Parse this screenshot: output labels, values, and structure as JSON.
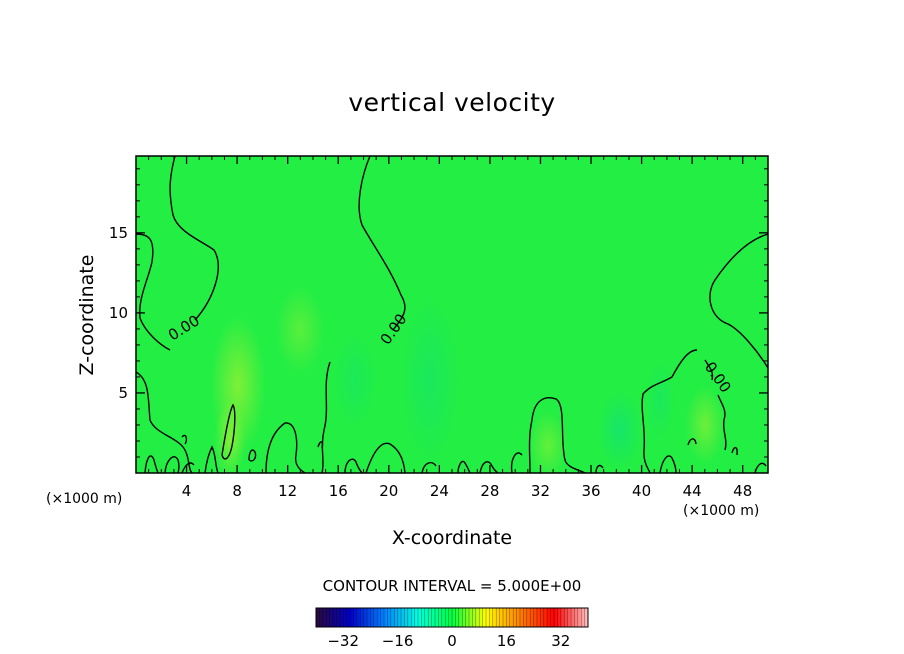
{
  "chart_data": {
    "type": "heatmap",
    "title": "vertical velocity",
    "xlabel": "X-coordinate",
    "ylabel": "Z-coordinate",
    "x_unit_left": "(×1000 m)",
    "x_unit_right": "(×1000 m)",
    "xlim": [
      0,
      50
    ],
    "ylim": [
      0,
      19.8
    ],
    "x_ticks": [
      4,
      8,
      12,
      16,
      20,
      24,
      28,
      32,
      36,
      40,
      44,
      48
    ],
    "y_ticks": [
      5,
      10,
      15
    ],
    "contour_labels": [
      {
        "text": "0.00",
        "x": 4,
        "y": 8.8,
        "angle": -32
      },
      {
        "text": "0.00",
        "x": 20.7,
        "y": 8.8,
        "angle": -55
      },
      {
        "text": "0.00",
        "x": 45.7,
        "y": 5.8,
        "angle": 55
      }
    ],
    "contour_interval_text": "CONTOUR INTERVAL = 5.000E+00",
    "colorbar": {
      "min": -40,
      "max": 40,
      "ticks": [
        -32,
        -16,
        0,
        16,
        32
      ],
      "colors": [
        "#2a0a3a",
        "#0000c8",
        "#0080ff",
        "#00ffe0",
        "#00ff40",
        "#ffff00",
        "#ff8000",
        "#ff0000",
        "#ffc0c0"
      ]
    },
    "field_background_color": "#22ee44",
    "grid": false
  }
}
